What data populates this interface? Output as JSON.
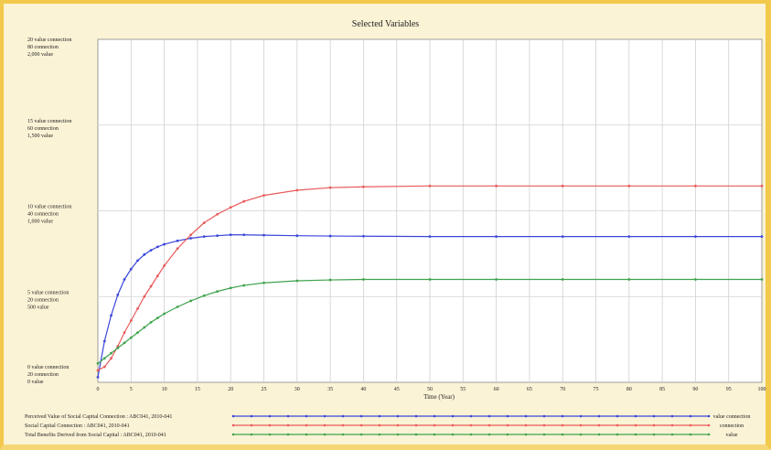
{
  "window": {
    "title": "Selected Variables",
    "background": "#fbf3d6",
    "border_color": "#f2c94c"
  },
  "chart_data": {
    "type": "line",
    "title": "Selected Variables",
    "xlabel": "Time (Year)",
    "ylabel": "",
    "xlim": [
      0,
      100
    ],
    "x_ticks": [
      "0",
      "5",
      "10",
      "15",
      "20",
      "25",
      "30",
      "35",
      "40",
      "45",
      "50",
      "55",
      "60",
      "65",
      "70",
      "75",
      "80",
      "85",
      "90",
      "95",
      "100"
    ],
    "grid": true,
    "legend_placement": "bottom",
    "y_axis_groups": [
      {
        "lines": [
          "20  value connection",
          "80  connection",
          "2,000  value"
        ]
      },
      {
        "lines": [
          "15  value connection",
          "60  connection",
          "1,500  value"
        ]
      },
      {
        "lines": [
          "10  value connection",
          "40  connection",
          "1,000  value"
        ]
      },
      {
        "lines": [
          "5  value connection",
          "20  connection",
          "500  value"
        ]
      },
      {
        "lines": [
          "0  value connection",
          "20  connection",
          "0  value"
        ]
      }
    ],
    "x": [
      0,
      1,
      2,
      3,
      4,
      5,
      6,
      7,
      8,
      9,
      10,
      12,
      14,
      16,
      18,
      20,
      22,
      25,
      30,
      35,
      40,
      50,
      60,
      70,
      80,
      90,
      100
    ],
    "series": [
      {
        "name": "Perceived Value of Social Capital Connection : ABC041, 2010-041",
        "unit_label": "value connection",
        "color": "#3a46d8",
        "values": [
          0.3,
          2.4,
          3.9,
          5.1,
          6.0,
          6.6,
          7.1,
          7.45,
          7.7,
          7.9,
          8.05,
          8.25,
          8.4,
          8.5,
          8.55,
          8.6,
          8.6,
          8.58,
          8.55,
          8.53,
          8.52,
          8.5,
          8.5,
          8.5,
          8.5,
          8.5,
          8.5
        ]
      },
      {
        "name": "Social Capital Connection : ABC041, 2010-041",
        "unit_label": "connection",
        "color": "#e85a5a",
        "values": [
          0.7,
          0.9,
          1.4,
          2.1,
          2.9,
          3.6,
          4.3,
          5.0,
          5.6,
          6.2,
          6.8,
          7.8,
          8.6,
          9.3,
          9.8,
          10.2,
          10.55,
          10.9,
          11.2,
          11.35,
          11.4,
          11.45,
          11.45,
          11.45,
          11.45,
          11.45,
          11.45
        ]
      },
      {
        "name": "Total Benefits Derived from Social Capital : ABC041, 2010-041",
        "unit_label": "value",
        "color": "#3fa34d",
        "values": [
          1.1,
          1.4,
          1.7,
          2.0,
          2.3,
          2.6,
          2.9,
          3.2,
          3.5,
          3.75,
          4.0,
          4.4,
          4.75,
          5.05,
          5.3,
          5.5,
          5.65,
          5.8,
          5.92,
          5.97,
          6.0,
          6.0,
          6.0,
          6.0,
          6.0,
          6.0,
          6.0
        ]
      }
    ]
  }
}
